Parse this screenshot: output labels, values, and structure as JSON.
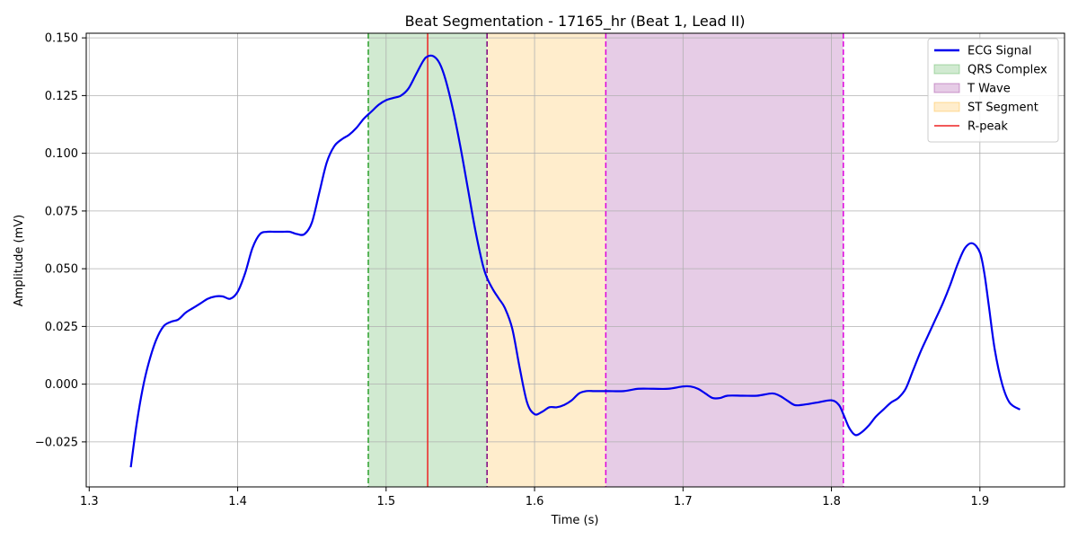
{
  "chart_data": {
    "type": "line",
    "title": "Beat Segmentation - 17165_hr (Beat 1, Lead II)",
    "xlabel": "Time (s)",
    "ylabel": "Amplitude (mV)",
    "xlim": [
      1.298,
      1.957
    ],
    "ylim": [
      -0.0445,
      0.152
    ],
    "xticks": [
      1.3,
      1.4,
      1.5,
      1.6,
      1.7,
      1.8,
      1.9
    ],
    "xtick_labels": [
      "1.3",
      "1.4",
      "1.5",
      "1.6",
      "1.7",
      "1.8",
      "1.9"
    ],
    "yticks": [
      -0.025,
      0.0,
      0.025,
      0.05,
      0.075,
      0.1,
      0.125,
      0.15
    ],
    "ytick_labels": [
      "−0.025",
      "0.000",
      "0.025",
      "0.050",
      "0.075",
      "0.100",
      "0.125",
      "0.150"
    ],
    "grid": true,
    "legend_position": "top-right",
    "regions": [
      {
        "name": "QRS Complex",
        "x_start": 1.488,
        "x_end": 1.568,
        "color": "#2ca02c",
        "opacity": 0.22
      },
      {
        "name": "ST Segment",
        "x_start": 1.568,
        "x_end": 1.648,
        "color": "#ffa500",
        "opacity": 0.2
      },
      {
        "name": "T Wave",
        "x_start": 1.648,
        "x_end": 1.808,
        "color": "#800080",
        "opacity": 0.2
      }
    ],
    "boundaries": [
      {
        "x": 1.488,
        "color": "#2ca02c"
      },
      {
        "x": 1.568,
        "color": "#800080"
      },
      {
        "x": 1.648,
        "color": "#dd00dd"
      },
      {
        "x": 1.808,
        "color": "#dd00dd"
      }
    ],
    "r_peak": {
      "x": 1.528,
      "color": "#ee2222"
    },
    "series": [
      {
        "name": "ECG Signal",
        "color": "#0000ee",
        "x": [
          1.328,
          1.332,
          1.336,
          1.34,
          1.345,
          1.35,
          1.355,
          1.36,
          1.365,
          1.37,
          1.375,
          1.38,
          1.385,
          1.39,
          1.395,
          1.4,
          1.405,
          1.41,
          1.415,
          1.42,
          1.425,
          1.43,
          1.435,
          1.44,
          1.445,
          1.45,
          1.455,
          1.46,
          1.465,
          1.47,
          1.475,
          1.48,
          1.485,
          1.49,
          1.495,
          1.5,
          1.505,
          1.51,
          1.515,
          1.52,
          1.525,
          1.528,
          1.532,
          1.536,
          1.54,
          1.545,
          1.55,
          1.555,
          1.56,
          1.565,
          1.568,
          1.572,
          1.576,
          1.58,
          1.585,
          1.59,
          1.595,
          1.6,
          1.605,
          1.61,
          1.615,
          1.62,
          1.625,
          1.63,
          1.635,
          1.64,
          1.645,
          1.65,
          1.66,
          1.67,
          1.68,
          1.69,
          1.7,
          1.705,
          1.71,
          1.715,
          1.72,
          1.725,
          1.73,
          1.74,
          1.75,
          1.76,
          1.765,
          1.77,
          1.775,
          1.78,
          1.79,
          1.8,
          1.805,
          1.808,
          1.812,
          1.816,
          1.82,
          1.825,
          1.83,
          1.835,
          1.84,
          1.845,
          1.85,
          1.855,
          1.86,
          1.865,
          1.87,
          1.875,
          1.88,
          1.885,
          1.89,
          1.895,
          1.9,
          1.903,
          1.906,
          1.91,
          1.915,
          1.92,
          1.927
        ],
        "values": [
          -0.036,
          -0.017,
          -0.002,
          0.009,
          0.019,
          0.025,
          0.027,
          0.028,
          0.031,
          0.033,
          0.035,
          0.037,
          0.038,
          0.038,
          0.037,
          0.04,
          0.048,
          0.059,
          0.065,
          0.066,
          0.066,
          0.066,
          0.066,
          0.065,
          0.065,
          0.07,
          0.083,
          0.096,
          0.103,
          0.106,
          0.108,
          0.111,
          0.115,
          0.118,
          0.121,
          0.123,
          0.124,
          0.125,
          0.128,
          0.134,
          0.14,
          0.142,
          0.142,
          0.139,
          0.132,
          0.119,
          0.103,
          0.085,
          0.067,
          0.052,
          0.046,
          0.041,
          0.037,
          0.033,
          0.024,
          0.007,
          -0.008,
          -0.013,
          -0.012,
          -0.01,
          -0.01,
          -0.009,
          -0.007,
          -0.004,
          -0.003,
          -0.003,
          -0.003,
          -0.003,
          -0.003,
          -0.002,
          -0.002,
          -0.002,
          -0.001,
          -0.001,
          -0.002,
          -0.004,
          -0.006,
          -0.006,
          -0.005,
          -0.005,
          -0.005,
          -0.004,
          -0.005,
          -0.007,
          -0.009,
          -0.009,
          -0.008,
          -0.007,
          -0.009,
          -0.013,
          -0.019,
          -0.022,
          -0.021,
          -0.018,
          -0.014,
          -0.011,
          -0.008,
          -0.006,
          -0.002,
          0.006,
          0.014,
          0.021,
          0.028,
          0.035,
          0.043,
          0.052,
          0.059,
          0.061,
          0.057,
          0.048,
          0.034,
          0.015,
          0.0,
          -0.008,
          -0.011
        ]
      }
    ],
    "legend": [
      {
        "label": "ECG Signal",
        "kind": "line",
        "color": "#0000ee"
      },
      {
        "label": "QRS Complex",
        "kind": "patch",
        "color": "#2ca02c",
        "opacity": 0.22
      },
      {
        "label": "T Wave",
        "kind": "patch",
        "color": "#800080",
        "opacity": 0.2
      },
      {
        "label": "ST Segment",
        "kind": "patch",
        "color": "#ffa500",
        "opacity": 0.2
      },
      {
        "label": "R-peak",
        "kind": "thinline",
        "color": "#ee2222"
      }
    ]
  }
}
